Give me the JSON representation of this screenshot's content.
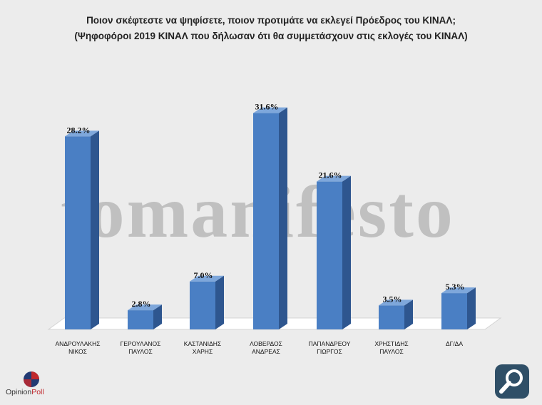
{
  "header": {
    "title_line1": "Ποιον σκέφτεστε να ψηφίσετε, ποιον προτιμάτε να εκλεγεί Πρόεδρος του ΚΙΝΑΛ;",
    "title_line2": "(Ψηφοφόροι 2019 ΚΙΝΑΛ που δήλωσαν ότι θα συμμετάσχουν στις εκλογές του ΚΙΝΑΛ)"
  },
  "watermark": "tomanifesto",
  "logo": {
    "part1": "Opinion",
    "part2": "Poll"
  },
  "colors": {
    "bar_front": "#4a7fc4",
    "bar_side": "#2e568f",
    "bar_top": "#7ea7db",
    "floor": "#ffffff"
  },
  "icons": {
    "search": "magnifier-icon"
  },
  "chart_data": {
    "type": "bar",
    "title": "Ποιον σκέφτεστε να ψηφίσετε, ποιον προτιμάτε να εκλεγεί Πρόεδρος του ΚΙΝΑΛ;",
    "categories": [
      [
        "ΑΝΔΡΟΥΛΑΚΗΣ",
        "ΝΙΚΟΣ"
      ],
      [
        "ΓΕΡΟΥΛΑΝΟΣ",
        "ΠΑΥΛΟΣ"
      ],
      [
        "ΚΑΣΤΑΝΙΔΗΣ",
        "ΧΑΡΗΣ"
      ],
      [
        "ΛΟΒΕΡΔΟΣ",
        "ΑΝΔΡΕΑΣ"
      ],
      [
        "ΠΑΠΑΝΔΡΕΟΥ",
        "ΓΙΩΡΓΟΣ"
      ],
      [
        "ΧΡΗΣΤΙΔΗΣ",
        "ΠΑΥΛΟΣ"
      ],
      [
        "ΔΓ/ΔΑ"
      ]
    ],
    "values": [
      28.2,
      2.8,
      7.0,
      31.6,
      21.6,
      3.5,
      5.3
    ],
    "labels": [
      "28.2%",
      "2.8%",
      "7.0%",
      "31.6%",
      "21.6%",
      "3.5%",
      "5.3%"
    ],
    "ylim": [
      0,
      35
    ],
    "grid": false,
    "legend": false
  }
}
